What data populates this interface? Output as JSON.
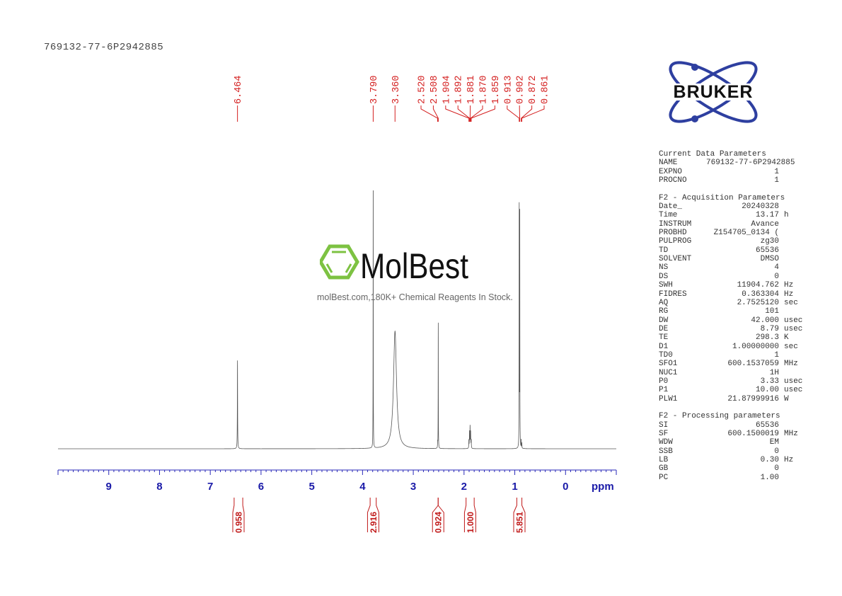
{
  "sample_id": "769132-77-6P2942885",
  "logos": {
    "bruker": "BRUKER",
    "watermark_brand": "MolBest",
    "watermark_tagline": "molBest.com,180K+ Chemical Reagents In Stock."
  },
  "colors": {
    "spectrum": "#555555",
    "axis": "#2a2ab8",
    "axis_label": "#1a1aa8",
    "peak_label": "#d42020",
    "integral": "#c01818",
    "bruker_blue": "#2e3fa0",
    "molbest_green": "#7dc242"
  },
  "parameters": {
    "sections": [
      {
        "title": "Current Data Parameters",
        "rows": [
          {
            "k": "NAME",
            "v": "769132-77-6P2942885",
            "u": "",
            "wide": true
          },
          {
            "k": "EXPNO",
            "v": "1",
            "u": ""
          },
          {
            "k": "PROCNO",
            "v": "1",
            "u": ""
          }
        ]
      },
      {
        "title": "F2 - Acquisition Parameters",
        "rows": [
          {
            "k": "Date_",
            "v": "20240328",
            "u": ""
          },
          {
            "k": "Time",
            "v": "13.17",
            "u": "h"
          },
          {
            "k": "INSTRUM",
            "v": "Avance",
            "u": ""
          },
          {
            "k": "PROBHD",
            "v": "Z154705_0134 (",
            "u": ""
          },
          {
            "k": "PULPROG",
            "v": "zg30",
            "u": ""
          },
          {
            "k": "TD",
            "v": "65536",
            "u": ""
          },
          {
            "k": "SOLVENT",
            "v": "DMSO",
            "u": ""
          },
          {
            "k": "NS",
            "v": "4",
            "u": ""
          },
          {
            "k": "DS",
            "v": "0",
            "u": ""
          },
          {
            "k": "SWH",
            "v": "11904.762",
            "u": "Hz"
          },
          {
            "k": "FIDRES",
            "v": "0.363304",
            "u": "Hz"
          },
          {
            "k": "AQ",
            "v": "2.7525120",
            "u": "sec"
          },
          {
            "k": "RG",
            "v": "101",
            "u": ""
          },
          {
            "k": "DW",
            "v": "42.000",
            "u": "usec"
          },
          {
            "k": "DE",
            "v": "8.79",
            "u": "usec"
          },
          {
            "k": "TE",
            "v": "298.3",
            "u": "K"
          },
          {
            "k": "D1",
            "v": "1.00000000",
            "u": "sec"
          },
          {
            "k": "TD0",
            "v": "1",
            "u": ""
          },
          {
            "k": "SFO1",
            "v": "600.1537059",
            "u": "MHz"
          },
          {
            "k": "NUC1",
            "v": "1H",
            "u": ""
          },
          {
            "k": "P0",
            "v": "3.33",
            "u": "usec"
          },
          {
            "k": "P1",
            "v": "10.00",
            "u": "usec"
          },
          {
            "k": "PLW1",
            "v": "21.87999916",
            "u": "W"
          }
        ]
      },
      {
        "title": "F2 - Processing parameters",
        "rows": [
          {
            "k": "SI",
            "v": "65536",
            "u": ""
          },
          {
            "k": "SF",
            "v": "600.1500019",
            "u": "MHz"
          },
          {
            "k": "WDW",
            "v": "EM",
            "u": ""
          },
          {
            "k": "SSB",
            "v": "0",
            "u": ""
          },
          {
            "k": "LB",
            "v": "0.30",
            "u": "Hz"
          },
          {
            "k": "GB",
            "v": "0",
            "u": ""
          },
          {
            "k": "PC",
            "v": "1.00",
            "u": ""
          }
        ]
      }
    ]
  },
  "chart_data": {
    "type": "line",
    "xlabel": "ppm",
    "xlim": [
      10.0,
      -1.0
    ],
    "x_reversed": true,
    "xticks": [
      9,
      8,
      7,
      6,
      5,
      4,
      3,
      2,
      1,
      0
    ],
    "minor_tick_step": 0.1,
    "grid": false,
    "peaks": [
      {
        "ppm": 6.464,
        "intensity": 33,
        "width": 0.003
      },
      {
        "ppm": 3.79,
        "intensity": 100,
        "width": 0.002
      },
      {
        "ppm": 3.36,
        "intensity": 44,
        "width": 0.035
      },
      {
        "ppm": 2.52,
        "intensity": 2,
        "width": 0.002
      },
      {
        "ppm": 2.508,
        "intensity": 47,
        "width": 0.002
      },
      {
        "ppm": 1.904,
        "intensity": 3,
        "width": 0.003
      },
      {
        "ppm": 1.892,
        "intensity": 6,
        "width": 0.003
      },
      {
        "ppm": 1.881,
        "intensity": 8,
        "width": 0.003
      },
      {
        "ppm": 1.87,
        "intensity": 6,
        "width": 0.003
      },
      {
        "ppm": 1.859,
        "intensity": 3,
        "width": 0.003
      },
      {
        "ppm": 0.913,
        "intensity": 90,
        "width": 0.002
      },
      {
        "ppm": 0.902,
        "intensity": 90,
        "width": 0.002
      },
      {
        "ppm": 0.872,
        "intensity": 3,
        "width": 0.002
      },
      {
        "ppm": 0.861,
        "intensity": 2,
        "width": 0.002
      }
    ],
    "peak_labels": [
      "6.464",
      "3.790",
      "3.360",
      "2.520",
      "2.508",
      "1.904",
      "1.892",
      "1.881",
      "1.870",
      "1.859",
      "0.913",
      "0.902",
      "0.872",
      "0.861"
    ],
    "integrals": [
      {
        "from": 6.53,
        "to": 6.36,
        "value": "0.958"
      },
      {
        "from": 3.85,
        "to": 3.73,
        "value": "2.916"
      },
      {
        "from": 2.515,
        "to": 2.505,
        "value": "0.924"
      },
      {
        "from": 1.96,
        "to": 1.8,
        "value": "1.000"
      },
      {
        "from": 0.96,
        "to": 0.86,
        "value": "5.851"
      }
    ]
  }
}
